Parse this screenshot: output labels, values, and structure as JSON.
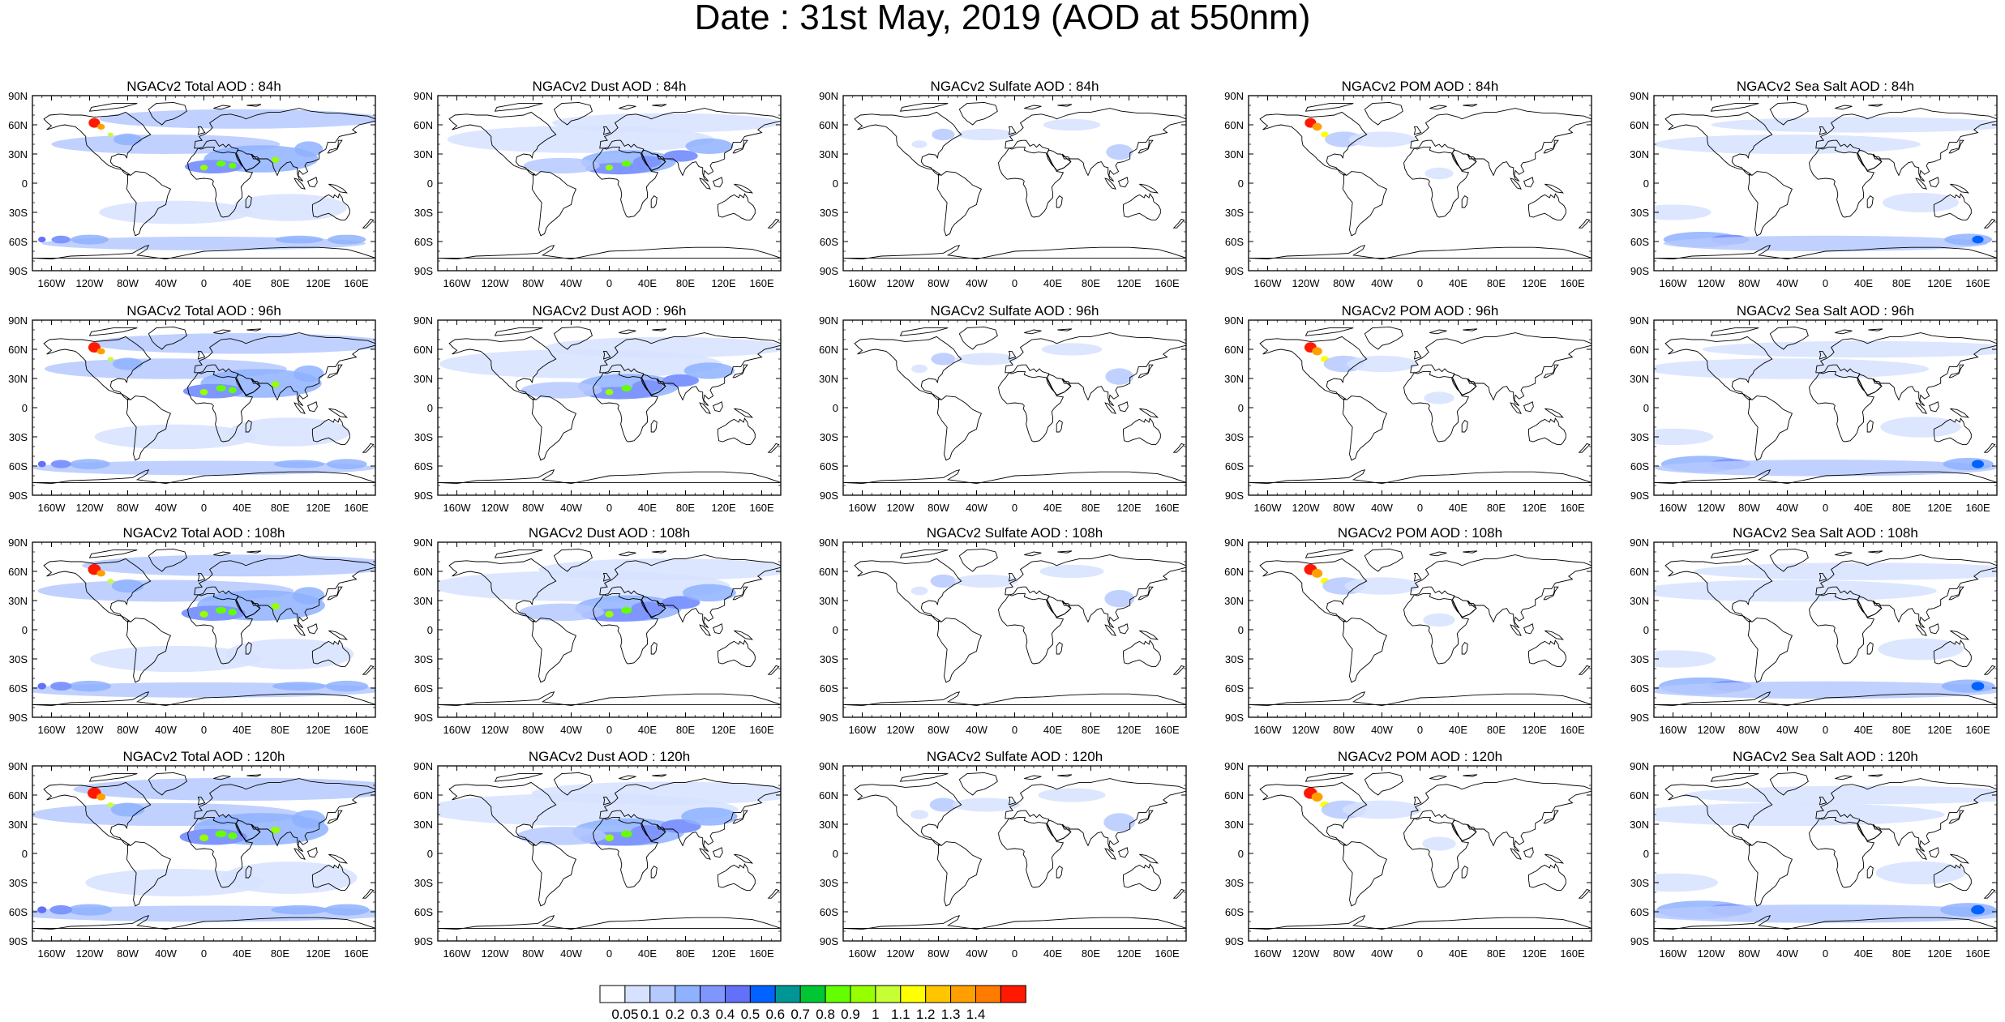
{
  "title": "Date : 31st May, 2019 (AOD at 550nm)",
  "chart_data": {
    "type": "heatmap",
    "description_type": "map panel grid",
    "row_forecast_hours": [
      "84h",
      "96h",
      "108h",
      "120h"
    ],
    "column_species": [
      "Total",
      "Dust",
      "Sulfate",
      "POM",
      "Sea Salt"
    ],
    "panel_titles": [
      [
        "NGACv2 Total AOD : 84h",
        "NGACv2 Dust AOD : 84h",
        "NGACv2 Sulfate AOD : 84h",
        "NGACv2 POM AOD : 84h",
        "NGACv2 Sea Salt AOD : 84h"
      ],
      [
        "NGACv2 Total AOD : 96h",
        "NGACv2 Dust AOD : 96h",
        "NGACv2 Sulfate AOD : 96h",
        "NGACv2 POM AOD : 96h",
        "NGACv2 Sea Salt AOD : 96h"
      ],
      [
        "NGACv2 Total AOD : 108h",
        "NGACv2 Dust AOD : 108h",
        "NGACv2 Sulfate AOD : 108h",
        "NGACv2 POM AOD : 108h",
        "NGACv2 Sea Salt AOD : 108h"
      ],
      [
        "NGACv2 Total AOD : 120h",
        "NGACv2 Dust AOD : 120h",
        "NGACv2 Sulfate AOD : 120h",
        "NGACv2 POM AOD : 120h",
        "NGACv2 Sea Salt  AOD : 120h"
      ]
    ],
    "lat_ticks": [
      "90N",
      "60N",
      "30N",
      "0",
      "30S",
      "60S",
      "90S"
    ],
    "lon_ticks": [
      "160W",
      "120W",
      "80W",
      "40W",
      "0",
      "40E",
      "80E",
      "120E",
      "160E"
    ],
    "lon_tick_values": [
      -160,
      -120,
      -80,
      -40,
      0,
      40,
      80,
      120,
      160
    ],
    "lat_tick_values": [
      90,
      60,
      30,
      0,
      -30,
      -60,
      -90
    ],
    "xlim": [
      -180,
      180
    ],
    "ylim": [
      -90,
      90
    ],
    "colorbar": {
      "levels": [
        "0.05",
        "0.1",
        "0.2",
        "0.3",
        "0.4",
        "0.5",
        "0.6",
        "0.7",
        "0.8",
        "0.9",
        "1",
        "1.1",
        "1.2",
        "1.3",
        "1.4"
      ],
      "colors": [
        "#ffffff",
        "#d6e2ff",
        "#b5c9ff",
        "#8eb2ff",
        "#7f96ff",
        "#6370f8",
        "#0063ff",
        "#009696",
        "#00c633",
        "#63ff00",
        "#96ff00",
        "#c6ff33",
        "#ffff00",
        "#ffc600",
        "#ffa000",
        "#ff7c00",
        "#ff1900"
      ]
    }
  }
}
